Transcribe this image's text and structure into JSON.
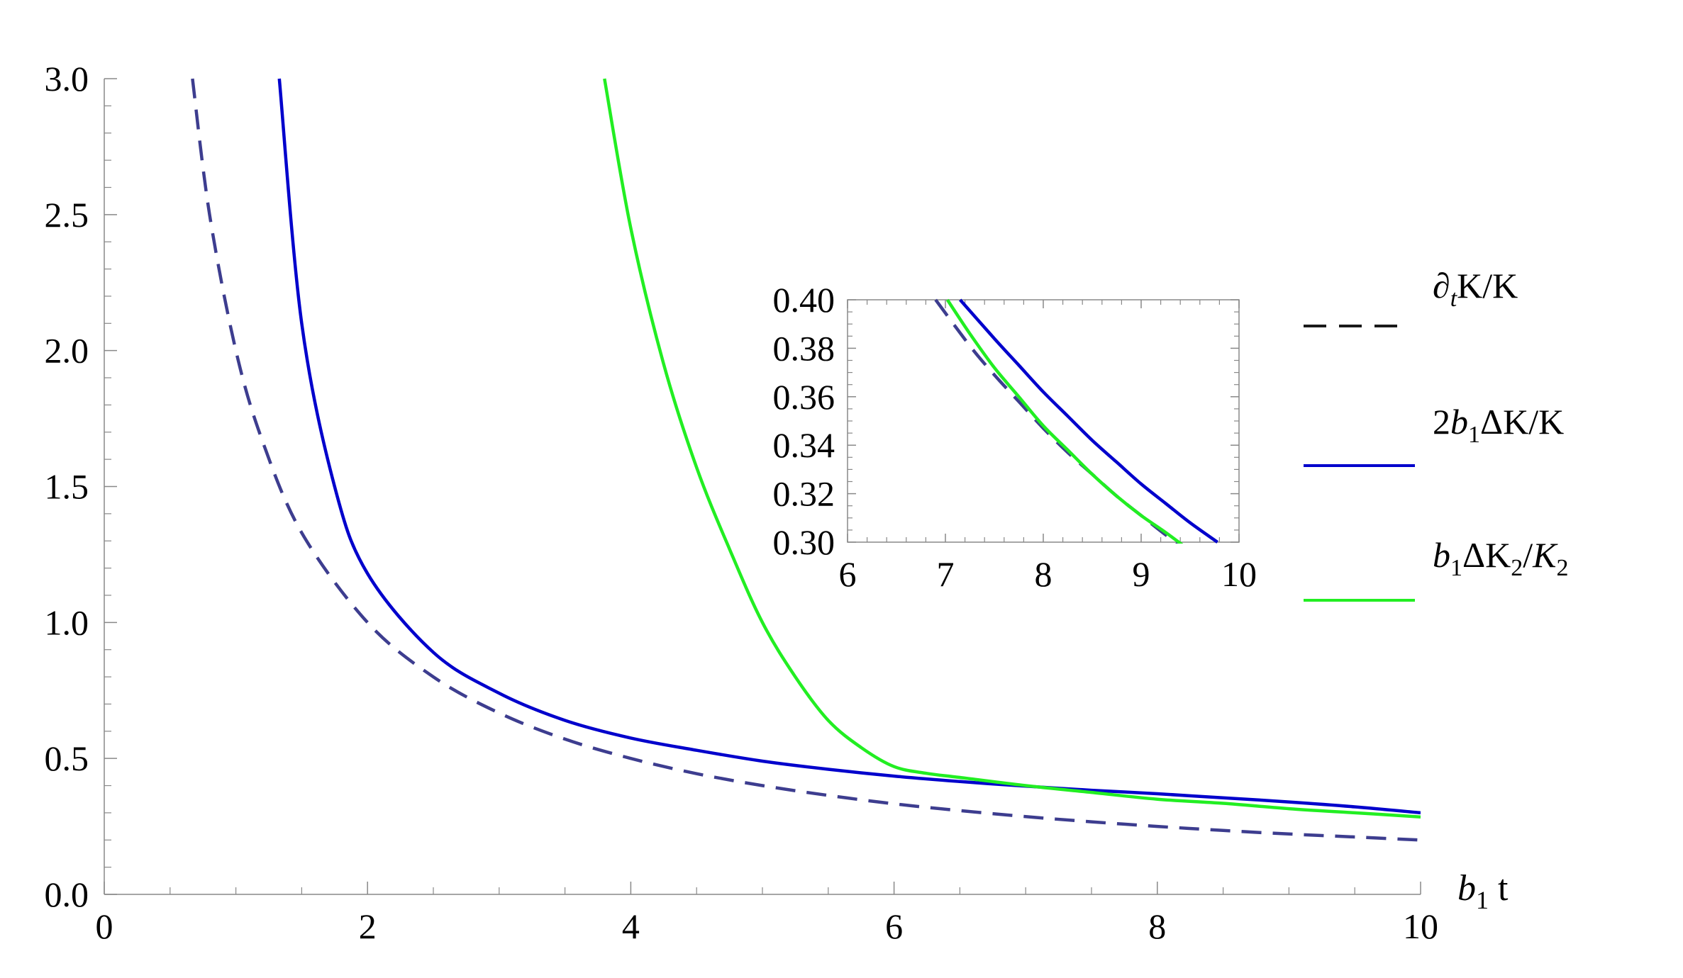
{
  "chart_data": [
    {
      "type": "line",
      "title": "",
      "xlabel": "b1 t",
      "ylabel": "",
      "xlim": [
        0,
        10
      ],
      "ylim": [
        0,
        3
      ],
      "grid": false,
      "legend": "right",
      "x_ticks": [
        "0",
        "2",
        "4",
        "6",
        "8",
        "10"
      ],
      "y_ticks": [
        "0.0",
        "0.5",
        "1.0",
        "1.5",
        "2.0",
        "2.5",
        "3.0"
      ],
      "series": [
        {
          "name": "∂tK/K",
          "style": "dashed",
          "color": "#3d3d8f",
          "x": [
            0.67,
            0.8,
            1.0,
            1.2,
            1.5,
            2.0,
            2.5,
            3.0,
            3.5,
            4.0,
            4.5,
            5.0,
            5.5,
            6.0,
            6.5,
            7.0,
            7.5,
            8.0,
            8.5,
            9.0,
            9.5,
            10.0
          ],
          "y": [
            3.0,
            2.5,
            2.0,
            1.67,
            1.33,
            1.0,
            0.8,
            0.667,
            0.571,
            0.5,
            0.444,
            0.4,
            0.364,
            0.333,
            0.308,
            0.286,
            0.267,
            0.25,
            0.235,
            0.222,
            0.211,
            0.2
          ]
        },
        {
          "name": "2b1ΔK/K",
          "style": "solid",
          "color": "#0000cc",
          "x": [
            1.33,
            1.5,
            1.75,
            2.0,
            2.5,
            3.0,
            3.5,
            4.0,
            4.5,
            5.0,
            5.5,
            6.0,
            6.5,
            7.0,
            7.5,
            8.0,
            8.5,
            9.0,
            9.5,
            10.0
          ],
          "y": [
            3.0,
            2.1,
            1.5,
            1.18,
            0.89,
            0.74,
            0.64,
            0.575,
            0.53,
            0.49,
            0.46,
            0.435,
            0.415,
            0.398,
            0.383,
            0.37,
            0.355,
            0.34,
            0.322,
            0.3
          ]
        },
        {
          "name": "b1ΔK2/K2",
          "style": "solid",
          "color": "#22ee22",
          "x": [
            3.8,
            4.0,
            4.25,
            4.5,
            4.75,
            5.0,
            5.25,
            5.5,
            5.75,
            6.0,
            6.25,
            6.5,
            7.0,
            7.5,
            8.0,
            8.5,
            9.0,
            9.5,
            10.0
          ],
          "y": [
            3.0,
            2.45,
            1.95,
            1.57,
            1.27,
            1.0,
            0.8,
            0.64,
            0.54,
            0.47,
            0.445,
            0.43,
            0.4,
            0.375,
            0.35,
            0.335,
            0.315,
            0.3,
            0.285
          ]
        }
      ]
    },
    {
      "type": "line",
      "title": "",
      "xlabel": "",
      "ylabel": "",
      "xlim": [
        6,
        10
      ],
      "ylim": [
        0.3,
        0.4
      ],
      "grid": false,
      "x_ticks": [
        "6",
        "7",
        "8",
        "9",
        "10"
      ],
      "y_ticks": [
        "0.30",
        "0.32",
        "0.34",
        "0.36",
        "0.38",
        "0.40"
      ],
      "series": [
        {
          "style": "dashed",
          "color": "#3d3d8f",
          "x": [
            6.9,
            7.25,
            7.5,
            7.75,
            8.0,
            8.25,
            8.5,
            8.75,
            9.0,
            9.25,
            9.5
          ],
          "y": [
            0.4,
            0.381,
            0.369,
            0.358,
            0.347,
            0.337,
            0.328,
            0.319,
            0.311,
            0.303,
            0.296
          ]
        },
        {
          "style": "solid",
          "color": "#0000cc",
          "x": [
            7.15,
            7.5,
            7.75,
            8.0,
            8.25,
            8.5,
            8.75,
            9.0,
            9.25,
            9.5,
            9.78
          ],
          "y": [
            0.4,
            0.384,
            0.373,
            0.362,
            0.352,
            0.342,
            0.333,
            0.324,
            0.316,
            0.308,
            0.3
          ]
        },
        {
          "style": "solid",
          "color": "#22ee22",
          "x": [
            7.02,
            7.25,
            7.5,
            7.75,
            8.0,
            8.25,
            8.5,
            8.75,
            9.0,
            9.25,
            9.45
          ],
          "y": [
            0.4,
            0.386,
            0.372,
            0.36,
            0.348,
            0.338,
            0.328,
            0.319,
            0.311,
            0.304,
            0.298
          ]
        }
      ]
    }
  ]
}
